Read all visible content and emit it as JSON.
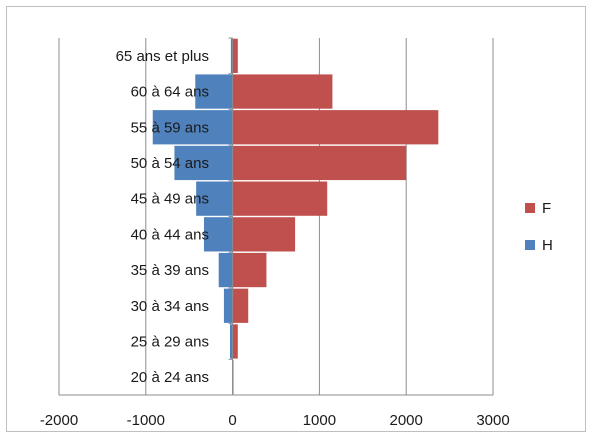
{
  "chart_data": {
    "type": "bar",
    "orientation": "horizontal",
    "stacked": true,
    "categories": [
      "65 ans et plus",
      "60 à 64 ans",
      "55 à 59 ans",
      "50 à 54 ans",
      "45 à 49 ans",
      "40 à 44 ans",
      "35 à 39 ans",
      "30 à 34 ans",
      "25 à 29 ans",
      "20 à 24 ans"
    ],
    "series": [
      {
        "name": "F",
        "color": "#c0504d",
        "values": [
          60,
          1150,
          2370,
          2000,
          1090,
          720,
          390,
          180,
          60,
          10
        ]
      },
      {
        "name": "H",
        "color": "#4f81bd",
        "values": [
          -20,
          -430,
          -920,
          -670,
          -420,
          -330,
          -160,
          -100,
          -30,
          -5
        ]
      }
    ],
    "xlim": [
      -2000,
      3000
    ],
    "xticks": [
      -2000,
      -1000,
      0,
      1000,
      2000,
      3000
    ],
    "xtick_labels": [
      "-2000",
      "-1000",
      "0",
      "1000",
      "2000",
      "3000"
    ],
    "grid": "vertical",
    "legend": "right",
    "title": "",
    "xlabel": "",
    "ylabel": ""
  }
}
